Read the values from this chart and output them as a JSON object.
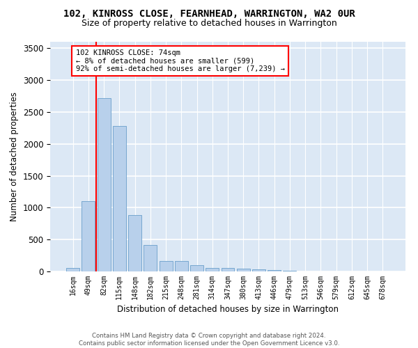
{
  "title": "102, KINROSS CLOSE, FEARNHEAD, WARRINGTON, WA2 0UR",
  "subtitle": "Size of property relative to detached houses in Warrington",
  "xlabel": "Distribution of detached houses by size in Warrington",
  "ylabel": "Number of detached properties",
  "categories": [
    "16sqm",
    "49sqm",
    "82sqm",
    "115sqm",
    "148sqm",
    "182sqm",
    "215sqm",
    "248sqm",
    "281sqm",
    "314sqm",
    "347sqm",
    "380sqm",
    "413sqm",
    "446sqm",
    "479sqm",
    "513sqm",
    "546sqm",
    "579sqm",
    "612sqm",
    "645sqm",
    "678sqm"
  ],
  "values": [
    55,
    1100,
    2720,
    2280,
    880,
    420,
    165,
    165,
    95,
    60,
    50,
    45,
    30,
    25,
    15,
    0,
    0,
    0,
    0,
    0,
    0
  ],
  "bar_color": "#b8d0eb",
  "bar_edge_color": "#6a9fcb",
  "annotation_line1": "102 KINROSS CLOSE: 74sqm",
  "annotation_line2": "← 8% of detached houses are smaller (599)",
  "annotation_line3": "92% of semi-detached houses are larger (7,239) →",
  "vline_position": 1.5,
  "ylim": [
    0,
    3600
  ],
  "yticks": [
    0,
    500,
    1000,
    1500,
    2000,
    2500,
    3000,
    3500
  ],
  "background_color": "#dce8f5",
  "grid_color": "#ffffff",
  "footer_line1": "Contains HM Land Registry data © Crown copyright and database right 2024.",
  "footer_line2": "Contains public sector information licensed under the Open Government Licence v3.0."
}
